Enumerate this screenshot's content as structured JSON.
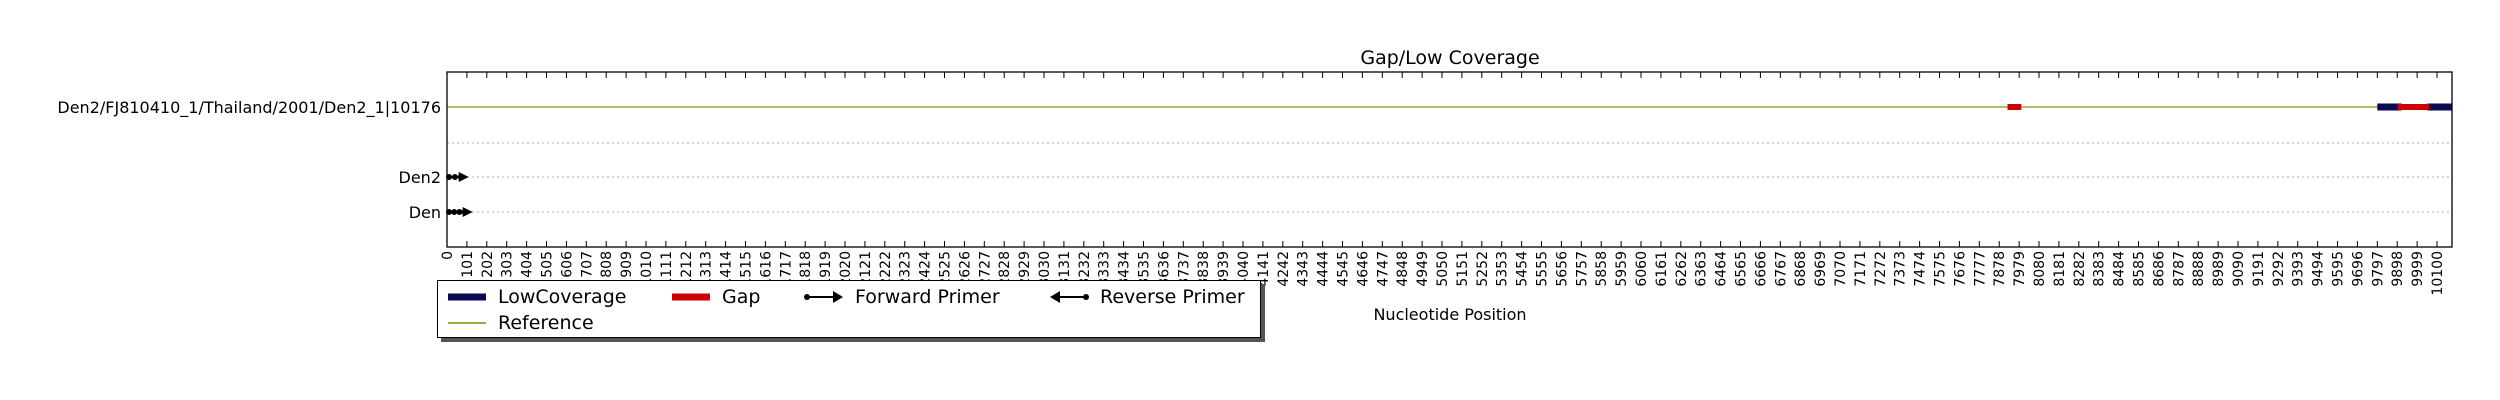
{
  "chart_data": {
    "type": "line",
    "title": "Gap/Low Coverage",
    "xlabel": "Nucleotide Position",
    "ylabel": "",
    "xlim": [
      0,
      10176
    ],
    "grid": true,
    "x_ticks": [
      0,
      101,
      202,
      303,
      404,
      505,
      606,
      707,
      808,
      909,
      1010,
      1111,
      1212,
      1313,
      1414,
      1515,
      1616,
      1717,
      1818,
      1919,
      2020,
      2121,
      2222,
      2323,
      2424,
      2525,
      2626,
      2727,
      2828,
      2929,
      3030,
      3131,
      3232,
      3333,
      3434,
      3535,
      3636,
      3737,
      3838,
      3939,
      4040,
      4141,
      4242,
      4343,
      4444,
      4545,
      4646,
      4747,
      4848,
      4949,
      5050,
      5151,
      5252,
      5353,
      5454,
      5555,
      5656,
      5757,
      5858,
      5959,
      6060,
      6161,
      6262,
      6363,
      6464,
      6565,
      6666,
      6767,
      6868,
      6969,
      7070,
      7171,
      7272,
      7373,
      7474,
      7575,
      7676,
      7777,
      7878,
      7979,
      8080,
      8181,
      8282,
      8383,
      8484,
      8585,
      8686,
      8787,
      8888,
      8989,
      9090,
      9191,
      9292,
      9393,
      9494,
      9595,
      9696,
      9797,
      9898,
      9999,
      10100
    ],
    "rows": [
      "Den2/FJ810410_1/Thailand/2001/Den2_1|10176",
      "",
      "Den2",
      "Den"
    ],
    "series": [
      {
        "name": "Reference",
        "color": "#9aaa3c",
        "row": 0,
        "segments": [
          [
            0,
            10176
          ]
        ]
      },
      {
        "name": "LowCoverage",
        "color": "#0a0a55",
        "row": 0,
        "segments": [
          [
            9797,
            9920
          ],
          [
            10050,
            10176
          ]
        ]
      },
      {
        "name": "Gap",
        "color": "#cc0000",
        "row": 0,
        "segments": [
          [
            7920,
            7990
          ],
          [
            9900,
            10060
          ]
        ]
      },
      {
        "name": "Forward Primer",
        "color": "#000000",
        "row": 2,
        "segments": [
          [
            0,
            90
          ]
        ]
      },
      {
        "name": "Forward Primer",
        "color": "#000000",
        "row": 3,
        "segments": [
          [
            0,
            110
          ]
        ]
      }
    ],
    "legend": {
      "placement": "lower-left",
      "entries": [
        {
          "label": "LowCoverage",
          "icon": "thick-bar",
          "color": "#0a0a55"
        },
        {
          "label": "Gap",
          "icon": "thick-bar",
          "color": "#cc0000"
        },
        {
          "label": "Forward Primer",
          "icon": "arrow-right-icon",
          "color": "#000000"
        },
        {
          "label": "Reverse Primer",
          "icon": "arrow-left-icon",
          "color": "#000000"
        },
        {
          "label": "Reference",
          "icon": "thin-line",
          "color": "#9aaa3c"
        }
      ]
    }
  }
}
